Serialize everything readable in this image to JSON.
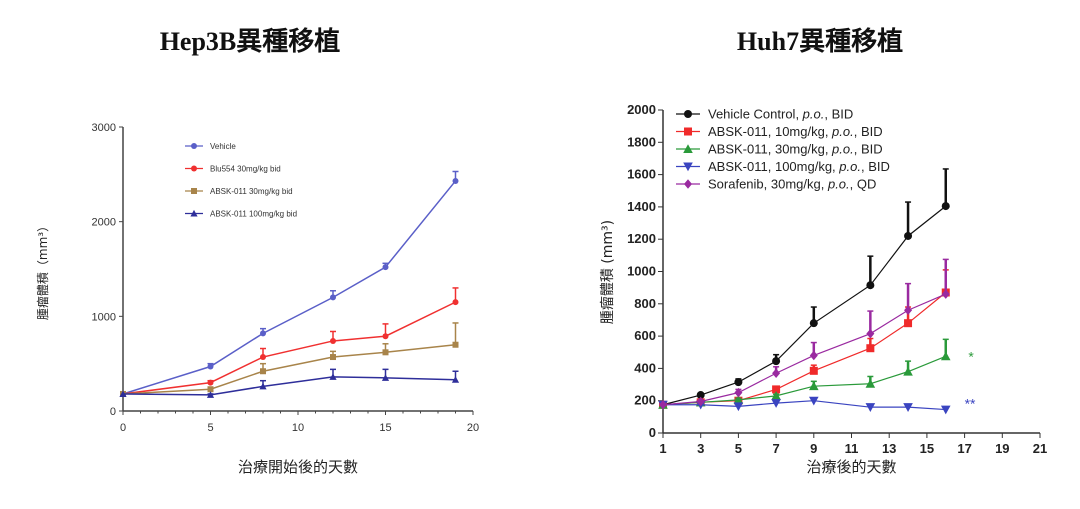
{
  "chart_data": [
    {
      "type": "line",
      "title": "Hep3B異種移植",
      "xlabel": "治療開始後的天數",
      "ylabel": "腫瘤體積（mm³）",
      "xlim": [
        0,
        20
      ],
      "ylim": [
        0,
        3000
      ],
      "xticks": [
        0,
        5,
        10,
        15,
        20
      ],
      "yticks": [
        0,
        1000,
        2000,
        3000
      ],
      "legend": "top-left",
      "series": [
        {
          "name": "Vehicle",
          "color": "#5a5fc8",
          "marker": "circle",
          "x": [
            0,
            5,
            8,
            12,
            15,
            19
          ],
          "y": [
            180,
            470,
            820,
            1200,
            1520,
            2430
          ],
          "err": [
            0,
            30,
            50,
            70,
            40,
            100
          ]
        },
        {
          "name": "Blu554 30mg/kg bid",
          "color": "#f03030",
          "marker": "circle",
          "x": [
            0,
            5,
            8,
            12,
            15,
            19
          ],
          "y": [
            180,
            300,
            570,
            740,
            790,
            1150
          ],
          "err": [
            0,
            20,
            90,
            100,
            130,
            150
          ]
        },
        {
          "name": "ABSK-011 30mg/kg bid",
          "color": "#a8844a",
          "marker": "square",
          "x": [
            0,
            5,
            8,
            12,
            15,
            19
          ],
          "y": [
            180,
            230,
            420,
            570,
            620,
            700
          ],
          "err": [
            0,
            20,
            80,
            60,
            90,
            230
          ]
        },
        {
          "name": "ABSK-011 100mg/kg bid",
          "color": "#2e2e9a",
          "marker": "triangle",
          "x": [
            0,
            5,
            8,
            12,
            15,
            19
          ],
          "y": [
            180,
            170,
            260,
            360,
            350,
            330
          ],
          "err": [
            0,
            10,
            60,
            80,
            90,
            90
          ]
        }
      ]
    },
    {
      "type": "line",
      "title": "Huh7異種移植",
      "xlabel": "治療後的天數",
      "ylabel": "腫瘤體積 (mm³)",
      "xlim": [
        1,
        21
      ],
      "ylim": [
        0,
        2000
      ],
      "xticks": [
        1,
        3,
        5,
        7,
        9,
        11,
        13,
        15,
        17,
        19,
        21
      ],
      "yticks": [
        0,
        200,
        400,
        600,
        800,
        1000,
        1200,
        1400,
        1600,
        1800,
        2000
      ],
      "legend": "top-left",
      "series": [
        {
          "name": "Vehicle Control, p.o., BID",
          "color": "#111111",
          "marker": "circle",
          "x": [
            1,
            3,
            5,
            7,
            9,
            12,
            14,
            16
          ],
          "y": [
            175,
            235,
            315,
            445,
            680,
            915,
            1220,
            1405
          ],
          "err": [
            0,
            10,
            20,
            40,
            100,
            180,
            210,
            230
          ]
        },
        {
          "name": "ABSK-011, 10mg/kg, p.o., BID",
          "color": "#f02a2a",
          "marker": "square",
          "x": [
            1,
            3,
            5,
            7,
            9,
            12,
            14,
            16
          ],
          "y": [
            175,
            190,
            200,
            270,
            385,
            525,
            680,
            870
          ],
          "err": [
            0,
            10,
            10,
            15,
            35,
            60,
            100,
            140
          ]
        },
        {
          "name": "ABSK-011, 30mg/kg, p.o., BID",
          "color": "#2a9a3a",
          "marker": "triangle",
          "x": [
            1,
            3,
            5,
            7,
            9,
            12,
            14,
            16
          ],
          "y": [
            175,
            190,
            205,
            230,
            290,
            305,
            380,
            475
          ],
          "err": [
            0,
            10,
            10,
            10,
            30,
            45,
            65,
            105
          ]
        },
        {
          "name": "ABSK-011, 100mg/kg, p.o., BID",
          "color": "#3a44c0",
          "marker": "triangle-down",
          "x": [
            1,
            3,
            5,
            7,
            9,
            12,
            14,
            16
          ],
          "y": [
            175,
            175,
            165,
            185,
            200,
            160,
            160,
            145
          ],
          "err": [
            0,
            0,
            0,
            0,
            0,
            0,
            0,
            0
          ]
        },
        {
          "name": "Sorafenib, 30mg/kg, p.o., QD",
          "color": "#9a2aa0",
          "marker": "diamond",
          "x": [
            1,
            3,
            5,
            7,
            9,
            12,
            14,
            16
          ],
          "y": [
            175,
            195,
            250,
            370,
            480,
            615,
            760,
            860
          ],
          "err": [
            0,
            10,
            20,
            40,
            80,
            140,
            165,
            215
          ]
        }
      ],
      "annotations": [
        {
          "text": "*",
          "x": 17.2,
          "y": 480,
          "color": "#2a9a3a"
        },
        {
          "text": "**",
          "x": 17.0,
          "y": 190,
          "color": "#3a44c0"
        }
      ]
    }
  ]
}
